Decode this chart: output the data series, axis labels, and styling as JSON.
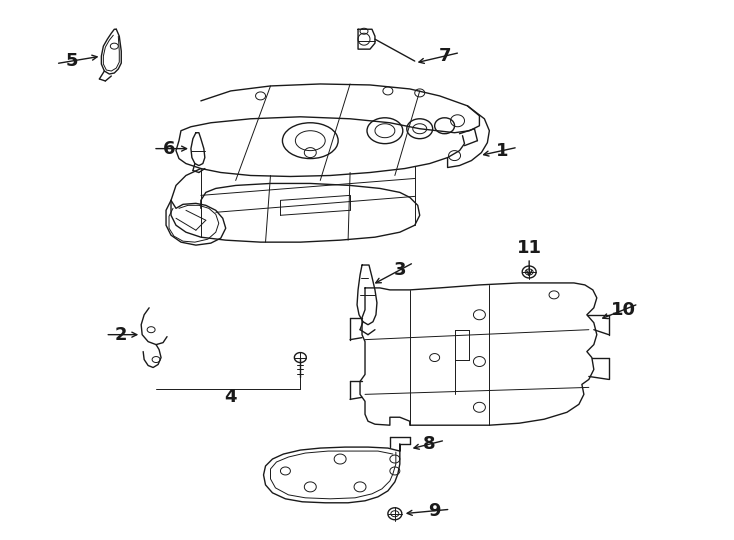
{
  "background_color": "#ffffff",
  "line_color": "#1a1a1a",
  "font_size_numbers": 13,
  "fig_width": 7.34,
  "fig_height": 5.4,
  "dpi": 100
}
